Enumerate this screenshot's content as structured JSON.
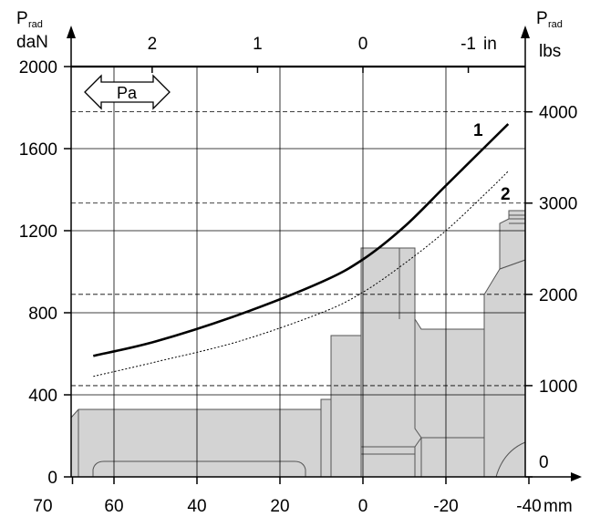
{
  "chart_data": {
    "type": "line",
    "x_axis_bottom": {
      "unit": "mm",
      "range": [
        70,
        -40
      ],
      "ticks": [
        "70",
        "60",
        "40",
        "20",
        "0",
        "-20",
        "-40"
      ],
      "tick_values": [
        70,
        60,
        40,
        20,
        0,
        -20,
        -40
      ]
    },
    "x_axis_top": {
      "unit": "in",
      "ticks": [
        "2",
        "1",
        "0",
        "-1"
      ],
      "tick_values": [
        2,
        1,
        0,
        -1
      ]
    },
    "y_axis_left": {
      "label_line1": "P",
      "label_sub": "rad",
      "label_line2": "daN",
      "range": [
        0,
        2000
      ],
      "ticks": [
        "0",
        "400",
        "800",
        "1200",
        "1600",
        "2000"
      ],
      "tick_values": [
        0,
        400,
        800,
        1200,
        1600,
        2000
      ]
    },
    "y_axis_right": {
      "label_line1": "P",
      "label_sub": "rad",
      "label_line2": "lbs",
      "ticks": [
        "0",
        "1000",
        "2000",
        "3000",
        "4000"
      ],
      "tick_values": [
        0,
        1000,
        2000,
        3000,
        4000
      ]
    },
    "grid": true,
    "annotation_arrow": "Pa",
    "series": [
      {
        "name": "1",
        "style": "solid",
        "x": [
          65,
          50,
          30,
          10,
          0,
          -10,
          -20,
          -30,
          -35
        ],
        "y": [
          590,
          660,
          790,
          950,
          1060,
          1220,
          1420,
          1620,
          1720
        ]
      },
      {
        "name": "2",
        "style": "dotted",
        "x": [
          65,
          50,
          30,
          10,
          0,
          -10,
          -20,
          -30,
          -35
        ],
        "y": [
          490,
          560,
          660,
          800,
          900,
          1040,
          1200,
          1390,
          1490
        ]
      }
    ]
  },
  "colors": {
    "axis": "#000000",
    "grid": "#000000",
    "curve": "#000000",
    "profile_fill": "#d3d3d3",
    "profile_stroke": "#555555"
  }
}
